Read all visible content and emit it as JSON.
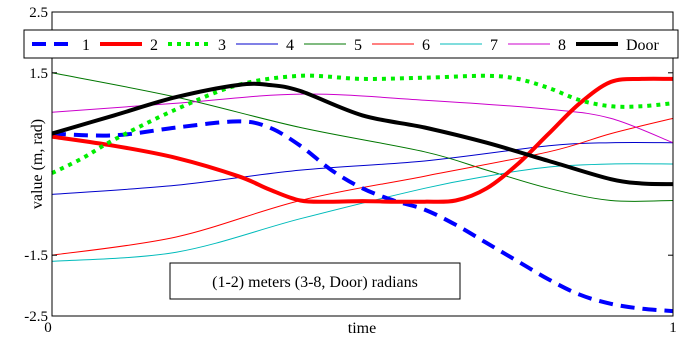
{
  "chart_data": {
    "type": "line",
    "xlabel": "time",
    "ylabel": "value (m, rad)",
    "xlim": [
      0,
      1
    ],
    "ylim": [
      -2.5,
      2.5
    ],
    "xticks": [
      "0",
      "1"
    ],
    "yticks": [
      "2.5",
      "1.5",
      "-1.5",
      "-2.5"
    ],
    "annotation": "(1-2) meters (3-8, Door) radians",
    "legend_position": "top",
    "grid": false,
    "series": [
      {
        "name": "1",
        "color": "#0000ff",
        "style": "dashed",
        "width": 4,
        "x": [
          0,
          0.1,
          0.2,
          0.3,
          0.35,
          0.4,
          0.45,
          0.5,
          0.55,
          0.6,
          0.65,
          0.7,
          0.75,
          0.8,
          0.85,
          0.9,
          0.95,
          1.0
        ],
        "y": [
          0.5,
          0.47,
          0.6,
          0.7,
          0.6,
          0.3,
          -0.1,
          -0.4,
          -0.6,
          -0.75,
          -1.0,
          -1.3,
          -1.6,
          -1.9,
          -2.15,
          -2.3,
          -2.38,
          -2.42
        ]
      },
      {
        "name": "2",
        "color": "#ff0000",
        "style": "solid",
        "width": 4,
        "x": [
          0,
          0.1,
          0.2,
          0.3,
          0.35,
          0.4,
          0.45,
          0.5,
          0.55,
          0.6,
          0.65,
          0.7,
          0.75,
          0.8,
          0.85,
          0.9,
          0.95,
          1.0
        ],
        "y": [
          0.45,
          0.3,
          0.1,
          -0.2,
          -0.42,
          -0.6,
          -0.62,
          -0.61,
          -0.62,
          -0.62,
          -0.6,
          -0.4,
          0.0,
          0.5,
          1.0,
          1.35,
          1.4,
          1.4
        ]
      },
      {
        "name": "3",
        "color": "#00ee00",
        "style": "dotted",
        "width": 4,
        "x": [
          0,
          0.05,
          0.1,
          0.2,
          0.3,
          0.4,
          0.5,
          0.6,
          0.7,
          0.75,
          0.8,
          0.85,
          0.9,
          0.95,
          1.0
        ],
        "y": [
          -0.15,
          0.1,
          0.4,
          0.9,
          1.3,
          1.45,
          1.4,
          1.42,
          1.45,
          1.4,
          1.25,
          1.05,
          0.95,
          0.95,
          1.0
        ]
      },
      {
        "name": "4",
        "color": "#0000cc",
        "style": "solid",
        "width": 1,
        "x": [
          0,
          0.2,
          0.4,
          0.6,
          0.8,
          0.9,
          1.0
        ],
        "y": [
          -0.5,
          -0.35,
          -0.1,
          0.05,
          0.3,
          0.35,
          0.35
        ]
      },
      {
        "name": "5",
        "color": "#007700",
        "style": "solid",
        "width": 1,
        "x": [
          0,
          0.2,
          0.4,
          0.6,
          0.7,
          0.8,
          0.9,
          1.0
        ],
        "y": [
          1.5,
          1.1,
          0.6,
          0.2,
          -0.1,
          -0.4,
          -0.6,
          -0.6
        ]
      },
      {
        "name": "6",
        "color": "#ff0000",
        "style": "solid",
        "width": 1,
        "x": [
          0,
          0.2,
          0.4,
          0.6,
          0.8,
          0.9,
          1.0
        ],
        "y": [
          -1.5,
          -1.2,
          -0.6,
          -0.2,
          0.2,
          0.5,
          0.75
        ]
      },
      {
        "name": "7",
        "color": "#00bbbb",
        "style": "solid",
        "width": 1,
        "x": [
          0,
          0.2,
          0.4,
          0.6,
          0.7,
          0.8,
          0.9,
          1.0
        ],
        "y": [
          -1.6,
          -1.45,
          -0.9,
          -0.4,
          -0.2,
          -0.05,
          0.0,
          0.0
        ]
      },
      {
        "name": "8",
        "color": "#cc00cc",
        "style": "solid",
        "width": 1,
        "x": [
          0,
          0.2,
          0.4,
          0.6,
          0.8,
          0.9,
          1.0
        ],
        "y": [
          0.85,
          1.0,
          1.15,
          1.05,
          0.9,
          0.75,
          0.35
        ]
      },
      {
        "name": "Door",
        "color": "#000000",
        "style": "solid",
        "width": 4,
        "x": [
          0,
          0.1,
          0.2,
          0.3,
          0.35,
          0.4,
          0.5,
          0.6,
          0.7,
          0.8,
          0.9,
          0.95,
          1.0
        ],
        "y": [
          0.5,
          0.8,
          1.1,
          1.3,
          1.3,
          1.2,
          0.8,
          0.6,
          0.35,
          0.05,
          -0.25,
          -0.32,
          -0.33
        ]
      }
    ]
  }
}
